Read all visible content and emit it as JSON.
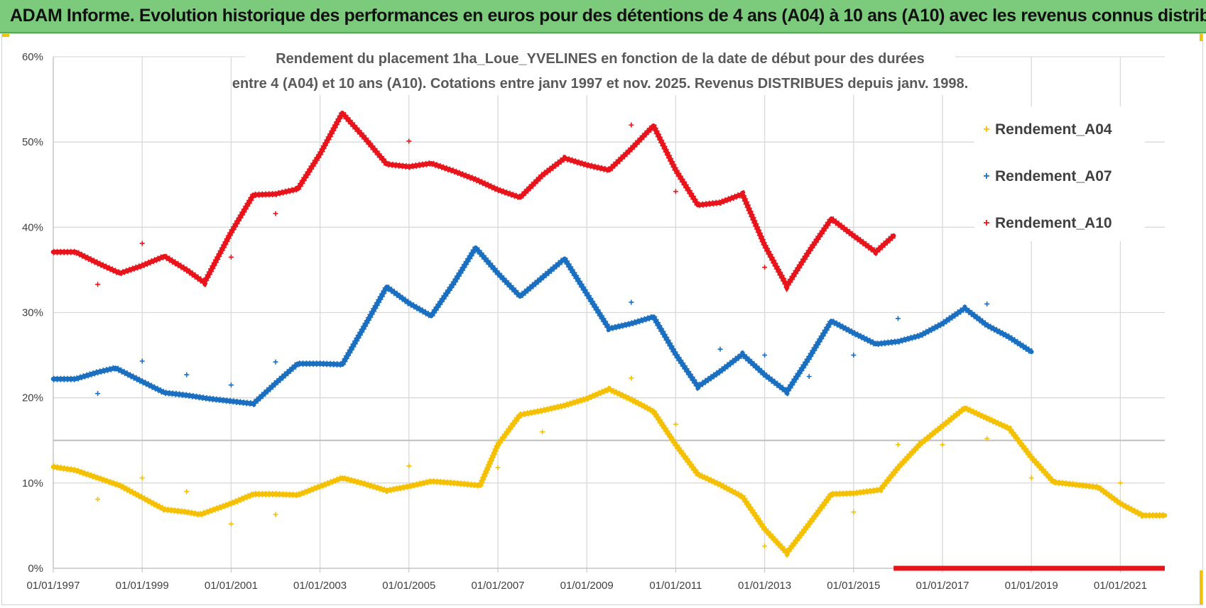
{
  "header": {
    "title": "ADAM Informe. Evolution historique des performances en euros pour des détentions de 4 ans (A04) à 10 ans (A10) avec les revenus connus distribués"
  },
  "chart_data": {
    "type": "scatter",
    "title_line1": "Rendement du placement 1ha_Loue_YVELINES en fonction de la date de début pour des durées",
    "title_line2": "entre 4 (A04) et 10 ans (A10). Cotations entre janv 1997 et nov. 2025. Revenus DISTRIBUES depuis janv. 1998.",
    "xlabel": "",
    "ylabel": "",
    "xlim": [
      1997.0,
      2022.0
    ],
    "ylim": [
      0,
      60
    ],
    "y_ticks": [
      "0%",
      "10%",
      "20%",
      "30%",
      "40%",
      "50%",
      "60%"
    ],
    "y_tick_values": [
      0,
      10,
      20,
      30,
      40,
      50,
      60
    ],
    "x_ticks": [
      "01/01/1997",
      "01/01/1999",
      "01/01/2001",
      "01/01/2003",
      "01/01/2005",
      "01/01/2007",
      "01/01/2009",
      "01/01/2011",
      "01/01/2013",
      "01/01/2015",
      "01/01/2017",
      "01/01/2019",
      "01/01/2021"
    ],
    "x_tick_values": [
      1997,
      1999,
      2001,
      2003,
      2005,
      2007,
      2009,
      2011,
      2013,
      2015,
      2017,
      2019,
      2021
    ],
    "reference_line_value": 15,
    "legend_position": "right",
    "series": [
      {
        "name": "Rendement_A04",
        "color": "#f5c000",
        "line": [
          [
            1997.0,
            11.9
          ],
          [
            1997.5,
            11.5
          ],
          [
            1998.0,
            10.6
          ],
          [
            1998.5,
            9.7
          ],
          [
            1999.0,
            8.3
          ],
          [
            1999.5,
            6.9
          ],
          [
            2000.0,
            6.6
          ],
          [
            2000.3,
            6.3
          ],
          [
            2001.0,
            7.6
          ],
          [
            2001.5,
            8.7
          ],
          [
            2002.0,
            8.7
          ],
          [
            2002.5,
            8.6
          ],
          [
            2003.0,
            9.6
          ],
          [
            2003.5,
            10.6
          ],
          [
            2004.0,
            9.9
          ],
          [
            2004.5,
            9.1
          ],
          [
            2005.0,
            9.6
          ],
          [
            2005.5,
            10.2
          ],
          [
            2006.0,
            10.0
          ],
          [
            2006.6,
            9.7
          ],
          [
            2007.0,
            14.5
          ],
          [
            2007.5,
            18.0
          ],
          [
            2008.0,
            18.5
          ],
          [
            2008.5,
            19.1
          ],
          [
            2009.0,
            19.9
          ],
          [
            2009.5,
            21.0
          ],
          [
            2010.0,
            19.8
          ],
          [
            2010.5,
            18.4
          ],
          [
            2011.0,
            14.5
          ],
          [
            2011.5,
            11.0
          ],
          [
            2012.0,
            9.8
          ],
          [
            2012.5,
            8.4
          ],
          [
            2013.0,
            4.6
          ],
          [
            2013.5,
            1.8
          ],
          [
            2014.0,
            5.2
          ],
          [
            2014.5,
            8.7
          ],
          [
            2015.0,
            8.8
          ],
          [
            2015.6,
            9.2
          ],
          [
            2016.0,
            11.8
          ],
          [
            2016.5,
            14.6
          ],
          [
            2017.0,
            16.7
          ],
          [
            2017.5,
            18.8
          ],
          [
            2018.0,
            17.6
          ],
          [
            2018.5,
            16.4
          ],
          [
            2019.0,
            13.0
          ],
          [
            2019.5,
            10.1
          ],
          [
            2020.0,
            9.8
          ],
          [
            2020.5,
            9.5
          ],
          [
            2021.0,
            7.6
          ],
          [
            2021.5,
            6.2
          ],
          [
            2022.0,
            6.2
          ]
        ],
        "outliers": [
          [
            1998.0,
            8.1
          ],
          [
            1999.0,
            10.6
          ],
          [
            2000.0,
            9.0
          ],
          [
            2001.0,
            5.2
          ],
          [
            2002.0,
            6.3
          ],
          [
            2005.0,
            12.0
          ],
          [
            2007.0,
            11.8
          ],
          [
            2008.0,
            16.0
          ],
          [
            2010.0,
            22.3
          ],
          [
            2011.0,
            16.9
          ],
          [
            2013.0,
            2.6
          ],
          [
            2015.0,
            6.6
          ],
          [
            2016.0,
            14.5
          ],
          [
            2017.0,
            14.5
          ],
          [
            2018.0,
            15.2
          ],
          [
            2019.0,
            10.6
          ],
          [
            2021.0,
            10.0
          ]
        ]
      },
      {
        "name": "Rendement_A07",
        "color": "#1a6fc0",
        "line": [
          [
            1997.0,
            22.2
          ],
          [
            1997.5,
            22.2
          ],
          [
            1998.0,
            23.0
          ],
          [
            1998.4,
            23.5
          ],
          [
            1999.0,
            21.9
          ],
          [
            1999.5,
            20.6
          ],
          [
            2000.0,
            20.3
          ],
          [
            2000.5,
            19.9
          ],
          [
            2001.0,
            19.6
          ],
          [
            2001.5,
            19.3
          ],
          [
            2002.0,
            21.7
          ],
          [
            2002.5,
            24.0
          ],
          [
            2003.0,
            24.0
          ],
          [
            2003.5,
            23.9
          ],
          [
            2004.0,
            28.4
          ],
          [
            2004.5,
            33.0
          ],
          [
            2005.0,
            31.1
          ],
          [
            2005.5,
            29.6
          ],
          [
            2006.0,
            33.4
          ],
          [
            2006.5,
            37.6
          ],
          [
            2007.0,
            34.6
          ],
          [
            2007.5,
            31.9
          ],
          [
            2008.0,
            34.1
          ],
          [
            2008.5,
            36.3
          ],
          [
            2009.0,
            32.2
          ],
          [
            2009.5,
            28.1
          ],
          [
            2010.0,
            28.7
          ],
          [
            2010.5,
            29.5
          ],
          [
            2011.0,
            25.1
          ],
          [
            2011.5,
            21.3
          ],
          [
            2012.0,
            23.1
          ],
          [
            2012.5,
            25.1
          ],
          [
            2013.0,
            22.7
          ],
          [
            2013.5,
            20.7
          ],
          [
            2014.0,
            24.7
          ],
          [
            2014.5,
            29.0
          ],
          [
            2015.0,
            27.6
          ],
          [
            2015.5,
            26.3
          ],
          [
            2016.0,
            26.6
          ],
          [
            2016.5,
            27.3
          ],
          [
            2017.0,
            28.7
          ],
          [
            2017.5,
            30.5
          ],
          [
            2018.0,
            28.5
          ],
          [
            2018.5,
            27.1
          ],
          [
            2019.0,
            25.4
          ]
        ],
        "outliers": [
          [
            1998.0,
            20.5
          ],
          [
            1999.0,
            24.3
          ],
          [
            2000.0,
            22.7
          ],
          [
            2001.0,
            21.5
          ],
          [
            2002.0,
            24.2
          ],
          [
            2010.0,
            31.2
          ],
          [
            2012.0,
            25.7
          ],
          [
            2013.0,
            25.0
          ],
          [
            2014.0,
            22.5
          ],
          [
            2015.0,
            25.0
          ],
          [
            2016.0,
            29.3
          ],
          [
            2018.0,
            31.0
          ]
        ]
      },
      {
        "name": "Rendement_A10",
        "color": "#e8141c",
        "line": [
          [
            1997.0,
            37.1
          ],
          [
            1997.5,
            37.1
          ],
          [
            1998.0,
            35.8
          ],
          [
            1998.5,
            34.6
          ],
          [
            1999.0,
            35.5
          ],
          [
            1999.5,
            36.6
          ],
          [
            2000.0,
            35.0
          ],
          [
            2000.4,
            33.5
          ],
          [
            2001.0,
            39.4
          ],
          [
            2001.5,
            43.8
          ],
          [
            2002.0,
            43.9
          ],
          [
            2002.5,
            44.5
          ],
          [
            2003.0,
            48.6
          ],
          [
            2003.5,
            53.4
          ],
          [
            2004.0,
            50.5
          ],
          [
            2004.5,
            47.4
          ],
          [
            2005.0,
            47.1
          ],
          [
            2005.5,
            47.5
          ],
          [
            2006.0,
            46.6
          ],
          [
            2006.5,
            45.6
          ],
          [
            2007.0,
            44.4
          ],
          [
            2007.5,
            43.5
          ],
          [
            2008.0,
            46.1
          ],
          [
            2008.5,
            48.1
          ],
          [
            2009.0,
            47.3
          ],
          [
            2009.5,
            46.7
          ],
          [
            2010.0,
            49.2
          ],
          [
            2010.5,
            51.9
          ],
          [
            2011.0,
            46.7
          ],
          [
            2011.5,
            42.6
          ],
          [
            2012.0,
            42.9
          ],
          [
            2012.5,
            43.9
          ],
          [
            2013.0,
            37.9
          ],
          [
            2013.5,
            33.1
          ],
          [
            2014.0,
            37.2
          ],
          [
            2014.5,
            41.0
          ],
          [
            2015.0,
            39.0
          ],
          [
            2015.5,
            37.1
          ],
          [
            2015.9,
            39.0
          ]
        ],
        "outliers": [
          [
            1998.0,
            33.3
          ],
          [
            1999.0,
            38.1
          ],
          [
            2001.0,
            36.5
          ],
          [
            2002.0,
            41.6
          ],
          [
            2005.0,
            50.1
          ],
          [
            2010.0,
            52.0
          ],
          [
            2011.0,
            44.2
          ],
          [
            2013.0,
            35.3
          ]
        ],
        "zero_segment": [
          2015.9,
          2022.0
        ]
      }
    ]
  }
}
